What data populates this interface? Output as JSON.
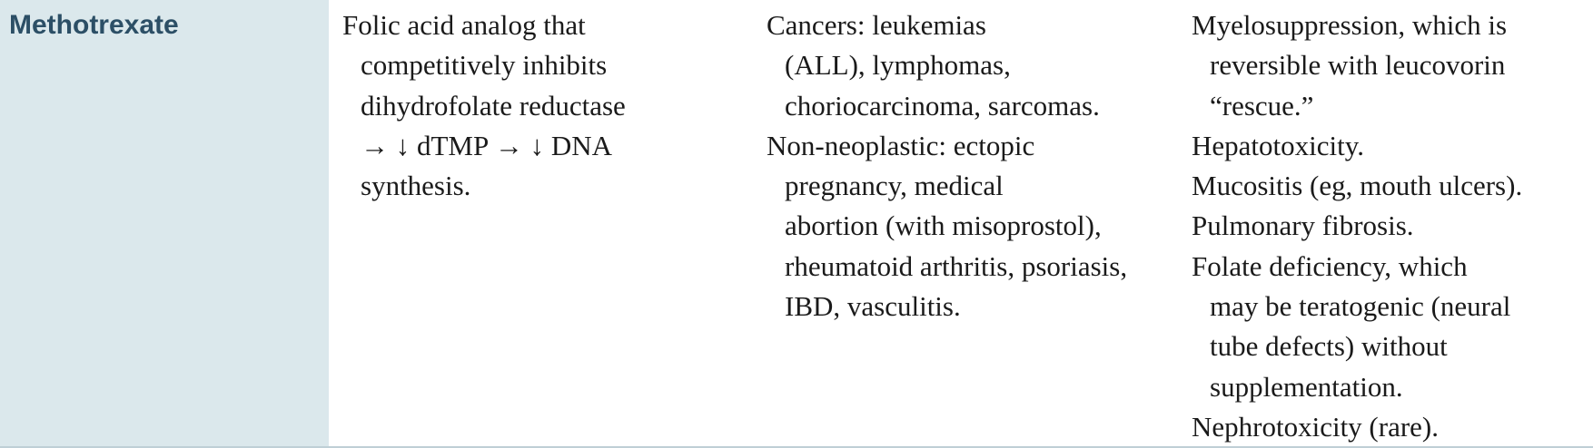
{
  "drug": {
    "name": "Methotrexate"
  },
  "mechanism": {
    "lines": [
      "Folic acid analog that",
      "competitively inhibits",
      "dihydrofolate reductase",
      "→ ↓ dTMP → ↓ DNA",
      "synthesis."
    ]
  },
  "clinical_use": {
    "entries": [
      {
        "lines": [
          "Cancers: leukemias",
          "(ALL), lymphomas,",
          "choriocarcinoma, sarcomas."
        ]
      },
      {
        "lines": [
          "Non-neoplastic: ectopic",
          "pregnancy, medical",
          "abortion (with misoprostol),",
          "rheumatoid arthritis, psoriasis,",
          "IBD, vasculitis."
        ]
      }
    ]
  },
  "adverse_effects": {
    "entries": [
      {
        "lines": [
          "Myelosuppression, which is",
          "reversible with leucovorin",
          "“rescue.”"
        ]
      },
      {
        "lines": [
          "Hepatotoxicity."
        ]
      },
      {
        "lines": [
          "Mucositis (eg, mouth ulcers)."
        ]
      },
      {
        "lines": [
          "Pulmonary fibrosis."
        ]
      },
      {
        "lines": [
          "Folate deficiency, which",
          "may be teratogenic (neural",
          "tube defects) without",
          "supplementation."
        ]
      },
      {
        "lines": [
          "Nephrotoxicity (rare)."
        ]
      }
    ]
  }
}
